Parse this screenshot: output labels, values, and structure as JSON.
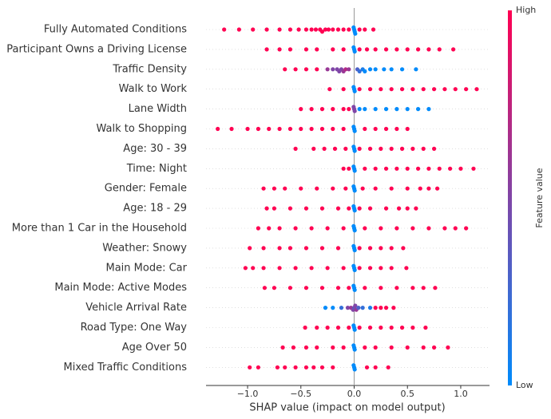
{
  "chart_data": {
    "type": "beeswarm",
    "xlabel": "SHAP value (impact on model output)",
    "colorbar_label": "Feature value",
    "colorbar_high": "High",
    "colorbar_low": "Low",
    "low_color": "#008bfb",
    "high_color": "#ff0052",
    "xlim": [
      -1.39,
      1.27
    ],
    "xticks": [
      {
        "value": -1,
        "label": "−1.0"
      },
      {
        "value": -0.5,
        "label": "−0.5"
      },
      {
        "value": 0,
        "label": "0.0"
      },
      {
        "value": 0.5,
        "label": "0.5"
      },
      {
        "value": 1,
        "label": "1.0"
      }
    ],
    "grid": true,
    "categories": [
      "Fully Automated Conditions",
      "Participant Owns a Driving License",
      "Traffic Density",
      "Walk to Work",
      "Lane Width",
      "Walk to Shopping",
      "Age: 30 - 39",
      "Time: Night",
      "Gender: Female",
      "Age: 18 - 29",
      "More than 1 Car in the Household",
      "Weather: Snowy",
      "Main Mode: Car",
      "Main Mode: Active Modes",
      "Vehicle Arrival Rate",
      "Road Type: One Way",
      "Age Over 50",
      "Mixed Traffic Conditions"
    ],
    "values": [
      [
        -1.22,
        -1.08,
        -0.95,
        -0.82,
        -0.7,
        -0.6,
        -0.52,
        -0.45,
        -0.4,
        -0.36,
        -0.32,
        -0.3,
        -0.27,
        -0.24,
        -0.2,
        -0.15,
        -0.1,
        -0.05,
        0,
        0.005,
        -0.005,
        0.01,
        0.05,
        0.1,
        0.18
      ],
      [
        -0.82,
        -0.7,
        -0.6,
        -0.45,
        -0.35,
        -0.2,
        -0.1,
        0,
        0.005,
        -0.005,
        0.05,
        0.12,
        0.2,
        0.3,
        0.4,
        0.5,
        0.6,
        0.7,
        0.8,
        0.93
      ],
      [
        -0.65,
        -0.55,
        -0.45,
        -0.35,
        -0.25,
        -0.2,
        -0.16,
        -0.14,
        -0.12,
        -0.1,
        -0.08,
        -0.05,
        0.03,
        0.05,
        0.08,
        0.1,
        0.15,
        0.2,
        0.28,
        0.35,
        0.45,
        0.58
      ],
      [
        -0.23,
        -0.1,
        0,
        0.005,
        -0.005,
        0.05,
        0.15,
        0.25,
        0.35,
        0.45,
        0.55,
        0.65,
        0.75,
        0.85,
        0.95,
        1.05,
        1.15
      ],
      [
        -0.5,
        -0.4,
        -0.3,
        -0.2,
        -0.1,
        -0.05,
        0,
        0.005,
        -0.005,
        0.05,
        0.1,
        0.2,
        0.3,
        0.4,
        0.5,
        0.6,
        0.7
      ],
      [
        -1.28,
        -1.15,
        -1.0,
        -0.9,
        -0.8,
        -0.7,
        -0.6,
        -0.5,
        -0.4,
        -0.3,
        -0.2,
        -0.1,
        0,
        0.005,
        -0.005,
        0.1,
        0.2,
        0.3,
        0.4,
        0.5
      ],
      [
        -0.55,
        -0.38,
        -0.28,
        -0.18,
        -0.08,
        0,
        0.005,
        -0.005,
        0.05,
        0.15,
        0.25,
        0.35,
        0.45,
        0.55,
        0.65,
        0.75
      ],
      [
        -0.1,
        -0.05,
        0,
        0.005,
        -0.005,
        0.1,
        0.2,
        0.3,
        0.4,
        0.5,
        0.6,
        0.7,
        0.8,
        0.9,
        1.0,
        1.12
      ],
      [
        -0.85,
        -0.75,
        -0.65,
        -0.5,
        -0.35,
        -0.2,
        -0.08,
        0,
        0.005,
        -0.005,
        0.08,
        0.2,
        0.35,
        0.5,
        0.62,
        0.7,
        0.78
      ],
      [
        -0.82,
        -0.75,
        -0.6,
        -0.45,
        -0.3,
        -0.15,
        -0.05,
        0,
        0.005,
        -0.005,
        0.05,
        0.15,
        0.3,
        0.42,
        0.5,
        0.58
      ],
      [
        -0.9,
        -0.8,
        -0.7,
        -0.55,
        -0.4,
        -0.25,
        -0.1,
        0,
        0.005,
        -0.005,
        0.1,
        0.25,
        0.4,
        0.55,
        0.7,
        0.85,
        0.95,
        1.05
      ],
      [
        -0.98,
        -0.85,
        -0.7,
        -0.6,
        -0.45,
        -0.3,
        -0.15,
        0,
        0.005,
        -0.005,
        0.05,
        0.15,
        0.25,
        0.35,
        0.46
      ],
      [
        -1.02,
        -0.95,
        -0.85,
        -0.7,
        -0.55,
        -0.4,
        -0.25,
        -0.1,
        0,
        0.005,
        -0.005,
        0.05,
        0.15,
        0.25,
        0.35,
        0.49
      ],
      [
        -0.84,
        -0.75,
        -0.6,
        -0.45,
        -0.3,
        -0.15,
        -0.05,
        0,
        0.005,
        -0.005,
        0.1,
        0.25,
        0.4,
        0.55,
        0.65,
        0.76
      ],
      [
        -0.27,
        -0.2,
        -0.12,
        -0.06,
        -0.03,
        -0.01,
        0,
        0.01,
        0.02,
        0.04,
        0.08,
        0.15,
        0.2,
        0.25,
        0.3,
        0.37
      ],
      [
        -0.46,
        -0.35,
        -0.25,
        -0.15,
        -0.05,
        0,
        0.005,
        -0.005,
        0.05,
        0.15,
        0.25,
        0.35,
        0.45,
        0.55,
        0.67
      ],
      [
        -0.67,
        -0.57,
        -0.45,
        -0.35,
        -0.2,
        -0.1,
        0,
        0.005,
        -0.005,
        0.1,
        0.2,
        0.35,
        0.5,
        0.65,
        0.75,
        0.88
      ],
      [
        -0.98,
        -0.9,
        -0.72,
        -0.65,
        -0.55,
        -0.45,
        -0.38,
        -0.3,
        -0.2,
        0,
        0.005,
        -0.005,
        0.12,
        0.2,
        0.32
      ]
    ],
    "feature_values": [
      [
        1,
        1,
        1,
        1,
        1,
        1,
        1,
        1,
        1,
        1,
        1,
        1,
        1,
        1,
        1,
        1,
        1,
        1,
        0,
        0,
        0,
        0,
        1,
        1,
        1
      ],
      [
        1,
        1,
        1,
        1,
        1,
        1,
        1,
        0,
        0,
        0,
        1,
        1,
        1,
        1,
        1,
        1,
        1,
        1,
        1,
        1
      ],
      [
        1,
        1,
        1,
        1,
        0.6,
        0.5,
        0.5,
        0.5,
        0.5,
        0.6,
        0.7,
        0.6,
        0.3,
        0.2,
        0.1,
        0,
        0,
        0,
        0,
        0,
        0,
        0
      ],
      [
        1,
        1,
        0,
        0,
        0,
        1,
        1,
        1,
        1,
        1,
        1,
        1,
        1,
        1,
        1,
        1,
        1
      ],
      [
        1,
        1,
        1,
        1,
        1,
        1,
        0.5,
        0.5,
        0.5,
        0,
        0,
        0,
        0,
        0,
        0,
        0,
        0
      ],
      [
        1,
        1,
        1,
        1,
        1,
        1,
        1,
        1,
        1,
        1,
        1,
        1,
        0,
        0,
        0,
        1,
        1,
        1,
        1,
        1
      ],
      [
        1,
        1,
        1,
        1,
        1,
        0,
        0,
        0,
        1,
        1,
        1,
        1,
        1,
        1,
        1,
        1
      ],
      [
        1,
        1,
        0,
        0,
        0,
        1,
        1,
        1,
        1,
        1,
        1,
        1,
        1,
        1,
        1,
        1
      ],
      [
        1,
        1,
        1,
        1,
        1,
        1,
        1,
        0,
        0,
        0,
        1,
        1,
        1,
        1,
        1,
        1,
        1
      ],
      [
        1,
        1,
        1,
        1,
        1,
        1,
        1,
        0,
        0,
        0,
        1,
        1,
        1,
        1,
        1,
        1
      ],
      [
        1,
        1,
        1,
        1,
        1,
        1,
        1,
        0,
        0,
        0,
        1,
        1,
        1,
        1,
        1,
        1,
        1,
        1
      ],
      [
        1,
        1,
        1,
        1,
        1,
        1,
        1,
        0,
        0,
        0,
        1,
        1,
        1,
        1,
        1
      ],
      [
        1,
        1,
        1,
        1,
        1,
        1,
        1,
        1,
        0,
        0,
        0,
        1,
        1,
        1,
        1,
        1
      ],
      [
        1,
        1,
        1,
        1,
        1,
        1,
        1,
        0,
        0,
        0,
        1,
        1,
        1,
        1,
        1,
        1
      ],
      [
        0,
        0,
        0.2,
        0.5,
        0.6,
        0.5,
        0.4,
        0.5,
        0.6,
        0.3,
        0.2,
        0.1,
        1,
        1,
        1,
        1
      ],
      [
        1,
        1,
        1,
        1,
        1,
        0,
        0,
        0,
        1,
        1,
        1,
        1,
        1,
        1,
        1
      ],
      [
        1,
        1,
        1,
        1,
        1,
        1,
        0,
        0,
        0,
        1,
        1,
        1,
        1,
        1,
        1,
        1
      ],
      [
        1,
        1,
        1,
        1,
        1,
        1,
        1,
        1,
        1,
        0,
        0,
        0,
        1,
        1,
        1
      ]
    ]
  }
}
